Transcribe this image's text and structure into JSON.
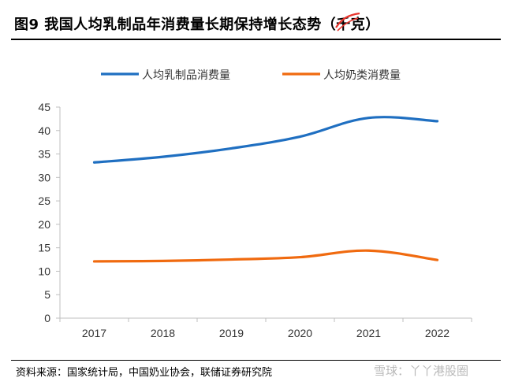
{
  "header": {
    "title": "图9   我国人均乳制品年消费量长期保持增长态势（千克）"
  },
  "chart_data": {
    "type": "line",
    "title": "图9   我国人均乳制品年消费量长期保持增长态势（千克）",
    "x": [
      "2017",
      "2018",
      "2019",
      "2020",
      "2021",
      "2022"
    ],
    "series": [
      {
        "name": "人均乳制品消费量",
        "color": "#1f6fc1",
        "values": [
          33.2,
          34.4,
          36.2,
          38.7,
          42.7,
          42.0
        ]
      },
      {
        "name": "人均奶类消费量",
        "color": "#f06a0f",
        "values": [
          12.1,
          12.2,
          12.5,
          13.0,
          14.4,
          12.4
        ]
      }
    ],
    "ylim": [
      0,
      45
    ],
    "yticks": [
      0,
      5,
      10,
      15,
      20,
      25,
      30,
      35,
      40,
      45
    ],
    "grid": false,
    "legend_position": "top"
  },
  "footer": {
    "source": "资料来源：国家统计局，中国奶业协会，联储证券研究院",
    "watermark": "雪球：丫丫港股圈"
  },
  "colors": {
    "axis": "#bfbfbf",
    "strike_mark": "#e8342c"
  }
}
